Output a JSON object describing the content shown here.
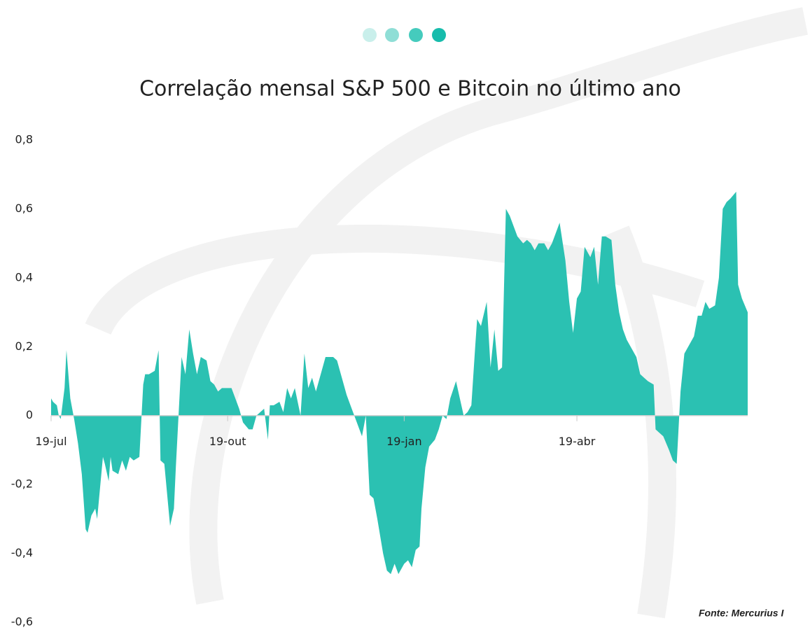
{
  "chart_data": {
    "type": "area",
    "title": "Correlação mensal S&P 500 e Bitcoin no último ano",
    "source": "Fonte: Mercurius I",
    "color": "#2bc1b2",
    "x": [
      0,
      1,
      3,
      4,
      5,
      7,
      8,
      10,
      12,
      14,
      16,
      18,
      19,
      21,
      23,
      24,
      27,
      28,
      30,
      31,
      32,
      35,
      37,
      39,
      41,
      43,
      46,
      48,
      49,
      51,
      54,
      56,
      57,
      59,
      62,
      64,
      65,
      68,
      70,
      72,
      74,
      76,
      78,
      81,
      83,
      85,
      87,
      89,
      92,
      94,
      96,
      98,
      100,
      103,
      105,
      107,
      109,
      111,
      113,
      114,
      116,
      119,
      121,
      123,
      125,
      127,
      130,
      132,
      134,
      136,
      138,
      141,
      143,
      145,
      147,
      149,
      151,
      154,
      156,
      158,
      160,
      162,
      164,
      166,
      168,
      170,
      173,
      175,
      177,
      179,
      181,
      184,
      186,
      188,
      190,
      192,
      193,
      195,
      197,
      200,
      202,
      204,
      206,
      208,
      211,
      213,
      215,
      217,
      219,
      221,
      222,
      224,
      227,
      229,
      231,
      233,
      235,
      237,
      239,
      241,
      243,
      246,
      248,
      250,
      252,
      254,
      257,
      259,
      261,
      263,
      265,
      268,
      270,
      272,
      274,
      276,
      278,
      281,
      283,
      285,
      287,
      289,
      292,
      294,
      296,
      298,
      300,
      303,
      305,
      307,
      309,
      311,
      314,
      315,
      317,
      319,
      322,
      324,
      326,
      328,
      330,
      333,
      335,
      337,
      339,
      341,
      343,
      346,
      348,
      350,
      352,
      354,
      357,
      358,
      360,
      363
    ],
    "values": [
      0.05,
      0.04,
      0.03,
      0.0,
      -0.01,
      0.08,
      0.19,
      0.05,
      -0.01,
      -0.08,
      -0.17,
      -0.33,
      -0.34,
      -0.29,
      -0.27,
      -0.3,
      -0.12,
      -0.14,
      -0.19,
      -0.12,
      -0.16,
      -0.17,
      -0.13,
      -0.16,
      -0.12,
      -0.13,
      -0.12,
      0.09,
      0.12,
      0.12,
      0.13,
      0.19,
      -0.13,
      -0.14,
      -0.32,
      -0.27,
      -0.15,
      0.17,
      0.12,
      0.25,
      0.18,
      0.12,
      0.17,
      0.16,
      0.1,
      0.09,
      0.07,
      0.08,
      0.08,
      0.08,
      0.05,
      0.02,
      -0.02,
      -0.04,
      -0.04,
      0.0,
      0.01,
      0.02,
      -0.07,
      0.03,
      0.03,
      0.04,
      0.01,
      0.08,
      0.05,
      0.08,
      0.0,
      0.18,
      0.08,
      0.11,
      0.07,
      0.13,
      0.17,
      0.17,
      0.17,
      0.16,
      0.12,
      0.06,
      0.03,
      0.0,
      -0.03,
      -0.06,
      0.0,
      -0.23,
      -0.24,
      -0.3,
      -0.4,
      -0.45,
      -0.46,
      -0.43,
      -0.46,
      -0.43,
      -0.42,
      -0.44,
      -0.39,
      -0.38,
      -0.27,
      -0.15,
      -0.09,
      -0.07,
      -0.04,
      0.0,
      -0.01,
      0.05,
      0.1,
      0.05,
      0.0,
      0.01,
      0.03,
      0.2,
      0.28,
      0.26,
      0.33,
      0.14,
      0.25,
      0.13,
      0.14,
      0.6,
      0.58,
      0.55,
      0.52,
      0.5,
      0.51,
      0.5,
      0.48,
      0.5,
      0.5,
      0.48,
      0.5,
      0.53,
      0.56,
      0.45,
      0.33,
      0.24,
      0.34,
      0.36,
      0.49,
      0.46,
      0.49,
      0.38,
      0.52,
      0.52,
      0.51,
      0.38,
      0.3,
      0.25,
      0.22,
      0.19,
      0.17,
      0.12,
      0.11,
      0.1,
      0.09,
      -0.04,
      -0.05,
      -0.06,
      -0.1,
      -0.13,
      -0.14,
      0.07,
      0.18,
      0.21,
      0.23,
      0.29,
      0.29,
      0.33,
      0.31,
      0.32,
      0.4,
      0.6,
      0.62,
      0.63,
      0.65,
      0.38,
      0.34,
      0.3
    ],
    "xlim": [
      0,
      363
    ],
    "xticks": [
      {
        "value": 0,
        "label": "19-jul"
      },
      {
        "value": 92,
        "label": "19-out"
      },
      {
        "value": 184,
        "label": "19-jan"
      },
      {
        "value": 274,
        "label": "19-abr"
      }
    ],
    "ylim": [
      -0.6,
      0.8
    ],
    "yticks": [
      {
        "value": -0.6,
        "label": "-0,6"
      },
      {
        "value": -0.4,
        "label": "-0,4"
      },
      {
        "value": -0.2,
        "label": "-0,2"
      },
      0,
      {
        "value": 0.2,
        "label": "0,2"
      },
      {
        "value": 0.4,
        "label": "0,4"
      },
      {
        "value": 0.6,
        "label": "0,6"
      },
      {
        "value": 0.8,
        "label": "0,8"
      }
    ]
  }
}
